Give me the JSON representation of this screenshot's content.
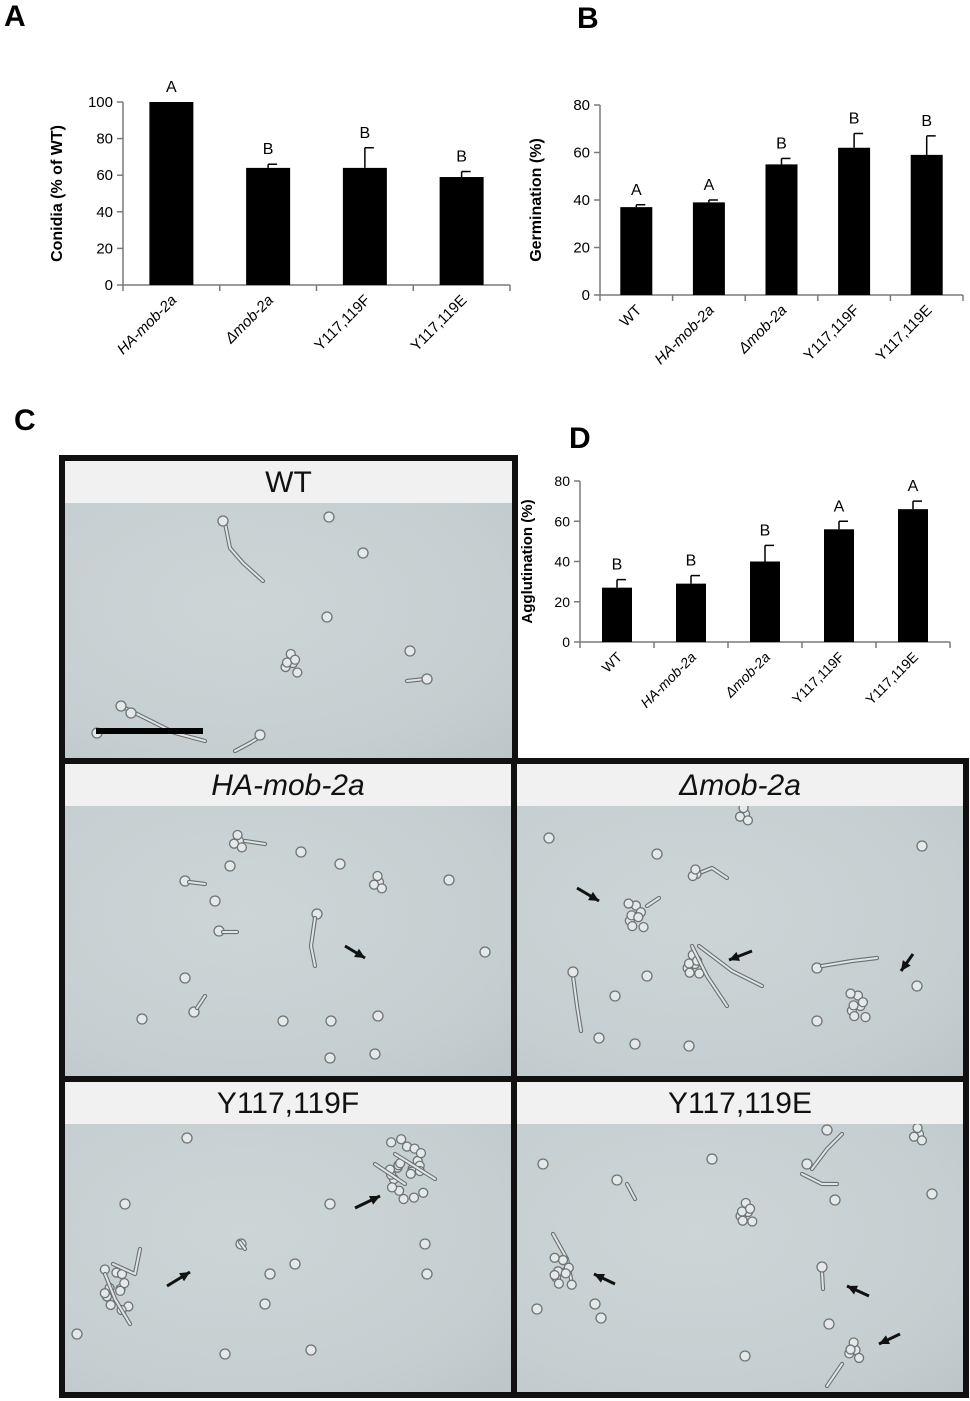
{
  "panels": {
    "A": "A",
    "B": "B",
    "C": "C",
    "D": "D"
  },
  "chart_data": [
    {
      "id": "A",
      "type": "bar",
      "ylabel": "Conidia (% of WT)",
      "xlabel": "",
      "ylim": [
        0,
        100
      ],
      "yticks": [
        0,
        20,
        40,
        60,
        80,
        100
      ],
      "categories": [
        "HA-mob-2a",
        "Δmob-2a",
        "Y117,119F",
        "Y117,119E"
      ],
      "italic_categories": [
        true,
        true,
        false,
        false
      ],
      "values": [
        100,
        64,
        64,
        59
      ],
      "errors": [
        0,
        2,
        11,
        3
      ],
      "letters": [
        "A",
        "B",
        "B",
        "B"
      ],
      "bar_color": "#000000"
    },
    {
      "id": "B",
      "type": "bar",
      "ylabel": "Germination (%)",
      "xlabel": "",
      "ylim": [
        0,
        80
      ],
      "yticks": [
        0,
        20,
        40,
        60,
        80
      ],
      "categories": [
        "WT",
        "HA-mob-2a",
        "Δmob-2a",
        "Y117,119F",
        "Y117,119E"
      ],
      "italic_categories": [
        false,
        true,
        true,
        false,
        false
      ],
      "values": [
        37,
        39,
        55,
        62,
        59
      ],
      "errors": [
        1,
        1,
        2.5,
        6,
        8
      ],
      "letters": [
        "A",
        "A",
        "B",
        "B",
        "B"
      ],
      "bar_color": "#000000"
    },
    {
      "id": "D",
      "type": "bar",
      "ylabel": "Agglutination (%)",
      "xlabel": "",
      "ylim": [
        0,
        80
      ],
      "yticks": [
        0,
        20,
        40,
        60,
        80
      ],
      "categories": [
        "WT",
        "HA-mob-2a",
        "Δmob-2a",
        "Y117,119F",
        "Y117,119E"
      ],
      "italic_categories": [
        false,
        true,
        true,
        false,
        false
      ],
      "values": [
        27,
        29,
        40,
        56,
        66
      ],
      "errors": [
        4,
        4,
        8,
        4,
        4
      ],
      "letters": [
        "B",
        "B",
        "B",
        "A",
        "A"
      ],
      "bar_color": "#000000"
    }
  ],
  "micrographs": [
    {
      "label": "WT",
      "italic": false,
      "has_scale_bar": true
    },
    {
      "label": "HA-mob-2a",
      "italic": true,
      "has_scale_bar": false
    },
    {
      "label": "Δmob-2a",
      "italic": true,
      "has_scale_bar": false
    },
    {
      "label": "Y117,119F",
      "italic": false,
      "has_scale_bar": false
    },
    {
      "label": "Y117,119E",
      "italic": false,
      "has_scale_bar": false
    }
  ]
}
